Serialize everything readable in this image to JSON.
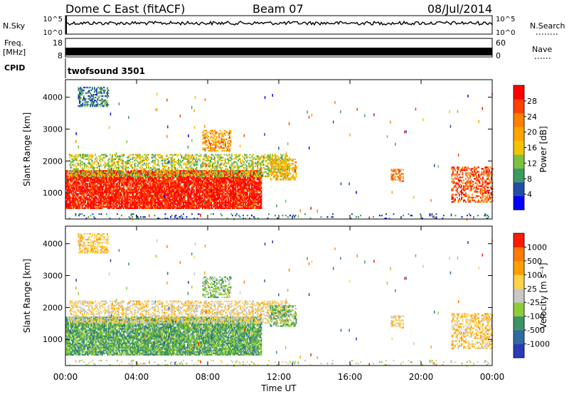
{
  "header": {
    "station": "Dome C East (fitACF)",
    "beam": "Beam 07",
    "date": "08/Jul/2014"
  },
  "top_panels": {
    "nsky": {
      "label": "N.Sky",
      "ticks": [
        "10^5",
        "10^0"
      ]
    },
    "nsearch": {
      "label": "N.Search",
      "ticks": [
        "10^5",
        "10^0"
      ]
    },
    "freq": {
      "label_line1": "Freq.",
      "label_line2": "[MHz]",
      "ticks": [
        "18",
        "8"
      ]
    },
    "nave": {
      "label": "Nave",
      "ticks": [
        "60",
        "0"
      ]
    },
    "cpid": {
      "label": "CPID",
      "value": "twofsound 3501"
    }
  },
  "x_axis": {
    "label": "Time UT",
    "ticks": [
      "00:00",
      "04:00",
      "08:00",
      "12:00",
      "16:00",
      "20:00",
      "00:00"
    ]
  },
  "power_panel": {
    "ylabel": "Slant Range [km]",
    "yticks": [
      "4000",
      "3000",
      "2000",
      "1000"
    ],
    "colorbar_label": "Power [dB]",
    "colorbar_ticks": [
      "28",
      "24",
      "20",
      "16",
      "12",
      "8",
      "4"
    ],
    "colors": [
      "#0000ff",
      "#234da8",
      "#3f9a62",
      "#7cc242",
      "#f5c400",
      "#ffa500",
      "#ff7f00",
      "#ff3f00",
      "#ff0000"
    ]
  },
  "velocity_panel": {
    "ylabel": "Slant Range [km]",
    "yticks": [
      "4000",
      "3000",
      "2000",
      "1000"
    ],
    "colorbar_label": "Velocity [m s⁻¹]",
    "colorbar_ticks": [
      "1000",
      "500",
      "100",
      "25",
      "-25",
      "-100",
      "-500",
      "-1000"
    ],
    "colors": [
      "#2a3ab8",
      "#2f6aa0",
      "#3d9466",
      "#8fcc3a",
      "#c8c8c8",
      "#ffd24a",
      "#ffa000",
      "#ff7a00",
      "#ff1a00"
    ]
  },
  "chart_data": {
    "type": "heatmap",
    "x_range_hours": [
      0,
      24
    ],
    "y_range_km": [
      180,
      4550
    ],
    "power_scale_db": [
      0,
      32
    ],
    "velocity_scale_ms": [
      -1000,
      1000
    ],
    "scatter_regions": [
      {
        "t0": 0.0,
        "t1": 11.0,
        "r0": 500,
        "r1": 1700,
        "power_db": 29,
        "velocity_ms": -350
      },
      {
        "t0": 0.2,
        "t1": 12.6,
        "r0": 1500,
        "r1": 2200,
        "power_db": 14,
        "velocity_ms": 150
      },
      {
        "t0": 7.7,
        "t1": 9.3,
        "r0": 2300,
        "r1": 2950,
        "power_db": 21,
        "velocity_ms": -200
      },
      {
        "t0": 11.5,
        "t1": 13.0,
        "r0": 1400,
        "r1": 2050,
        "power_db": 18,
        "velocity_ms": -300
      },
      {
        "t0": 0.7,
        "t1": 2.4,
        "r0": 3700,
        "r1": 4300,
        "power_db": 8,
        "velocity_ms": 300
      },
      {
        "t0": 18.3,
        "t1": 19.0,
        "r0": 1350,
        "r1": 1750,
        "power_db": 24,
        "velocity_ms": 200
      },
      {
        "t0": 21.7,
        "t1": 24.0,
        "r0": 700,
        "r1": 1800,
        "power_db": 26,
        "velocity_ms": 250
      },
      {
        "t0": 0.0,
        "t1": 24.0,
        "r0": 180,
        "r1": 320,
        "power_db": 6,
        "velocity_ms": -60
      }
    ]
  }
}
